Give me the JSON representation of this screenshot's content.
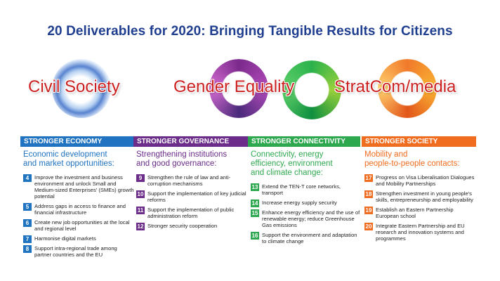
{
  "title": "20 Deliverables for 2020: Bringing Tangible Results for Citizens",
  "crosscutting": [
    {
      "label": "Civil Society"
    },
    {
      "label": "Gender Equality"
    },
    {
      "label": "StratCom/media"
    }
  ],
  "columns": [
    {
      "band": "STRONGER ECONOMY",
      "subhead_lines": [
        "Economic development",
        "and market opportunities:"
      ],
      "items": [
        {
          "num": "4",
          "text": "Improve the investment and business environment and unlock Small and Medium-sized Enterprises' (SMEs) growth potential"
        },
        {
          "num": "5",
          "text": "Address gaps in access to finance and financial infrastructure"
        },
        {
          "num": "6",
          "text": "Create new job opportunities at the local and regional level"
        },
        {
          "num": "7",
          "text": "Harmonise digital markets"
        },
        {
          "num": "8",
          "text": "Support intra-regional trade among partner countries and the EU"
        }
      ]
    },
    {
      "band": "STRONGER GOVERNANCE",
      "subhead_lines": [
        "Strengthening institutions",
        "and good governance:"
      ],
      "items": [
        {
          "num": "9",
          "text": "Strengthen the rule of law and anti-corruption mechanisms"
        },
        {
          "num": "10",
          "text": "Support the implementation of key judicial reforms"
        },
        {
          "num": "11",
          "text": "Support the implementation of public administration reform"
        },
        {
          "num": "12",
          "text": "Stronger security cooperation"
        }
      ]
    },
    {
      "band": "STRONGER CONNECTIVITY",
      "subhead_lines": [
        "Connectivity, energy",
        "efficiency, environment",
        "and climate change:"
      ],
      "items": [
        {
          "num": "13",
          "text": "Extend the TEN-T core networks, transport"
        },
        {
          "num": "14",
          "text": "Increase energy supply security"
        },
        {
          "num": "15",
          "text": "Enhance energy efficiency and the use of renewable energy; reduce Greenhouse Gas emissions"
        },
        {
          "num": "16",
          "text": "Support the environment and adaptation to climate change"
        }
      ]
    },
    {
      "band": "STRONGER SOCIETY",
      "subhead_lines": [
        "Mobility and",
        "people-to-people contacts:"
      ],
      "items": [
        {
          "num": "17",
          "text": "Progress on Visa Liberalisation Dialogues and Mobility Partnerships"
        },
        {
          "num": "18",
          "text": "Strengthen investment in young people's skills, entrepreneurship and employability"
        },
        {
          "num": "19",
          "text": "Establish an Eastern Partnership European school"
        },
        {
          "num": "20",
          "text": "Integrate Eastern Partnership and EU research and innovation systems and programmes"
        }
      ]
    }
  ]
}
